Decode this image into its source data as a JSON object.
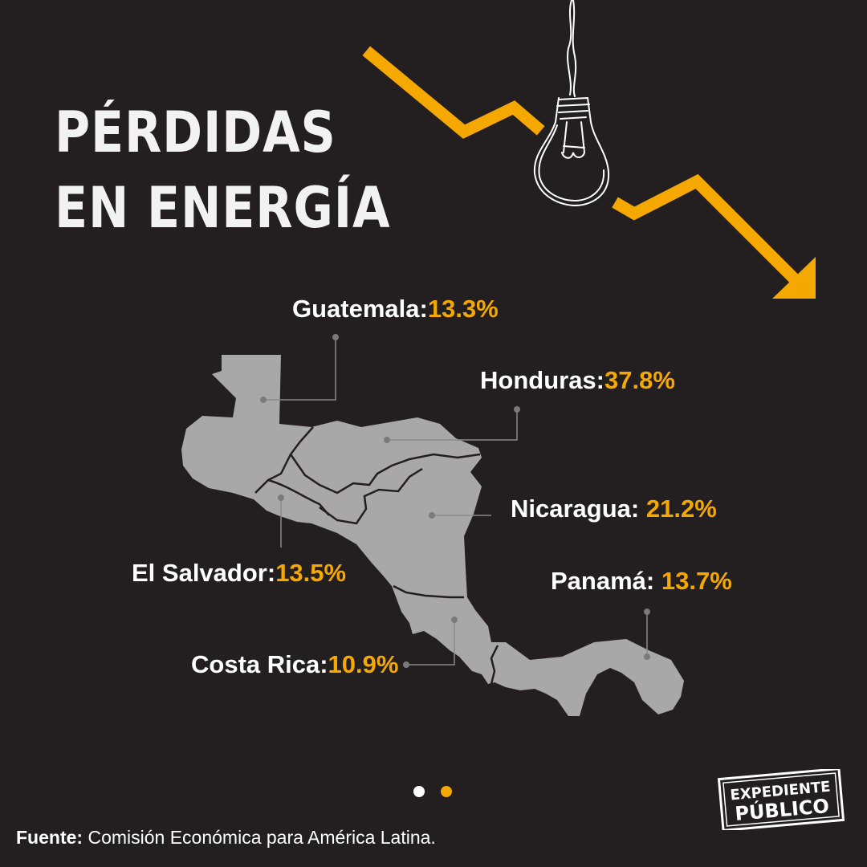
{
  "title": {
    "line1": "PÉRDIDAS",
    "line2": "EN ENERGÍA"
  },
  "countries": [
    {
      "key": "guatemala",
      "name": "Guatemala:",
      "value": "13.3%"
    },
    {
      "key": "honduras",
      "name": "Honduras:",
      "value": "37.8%"
    },
    {
      "key": "nicaragua",
      "name": "Nicaragua:",
      "value": "21.2%"
    },
    {
      "key": "el_salvador",
      "name": "El Salvador:",
      "value": "13.5%"
    },
    {
      "key": "panama",
      "name": "Panamá:",
      "value": "13.7%"
    },
    {
      "key": "costa_rica",
      "name": "Costa Rica:",
      "value": "10.9%"
    }
  ],
  "source": {
    "label": "Fuente:",
    "text": "Comisión Económica para América Latina."
  },
  "logo": {
    "line1": "EXPEDIENTE",
    "line2": "PÚBLICO"
  },
  "pagination": {
    "count": 2,
    "active_index": 1
  },
  "colors": {
    "background": "#231f20",
    "accent": "#f5a800",
    "map": "#a8a8a8",
    "text": "#ffffff"
  },
  "icons": [
    "light-bulb-icon",
    "down-trend-arrow-icon"
  ]
}
